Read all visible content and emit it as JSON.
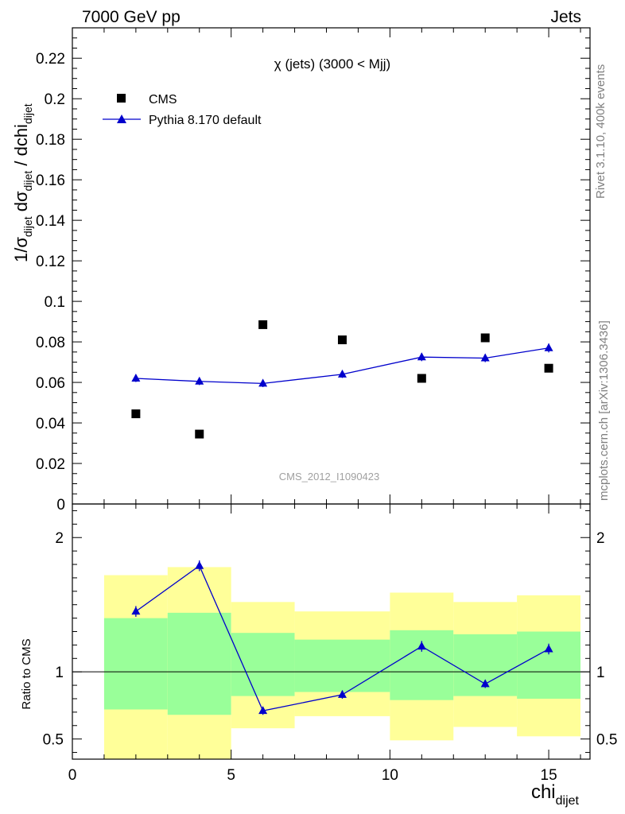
{
  "header": {
    "left": "7000 GeV pp",
    "right": "Jets"
  },
  "side_labels": {
    "rivet": "Rivet 3.1.10,  400k events",
    "mcplots": "mcplots.cern.ch [arXiv:1306.3436]"
  },
  "chart_data": {
    "type": "scatter",
    "title": "χ (jets) (3000 < Mjj)",
    "analysis_id": "CMS_2012_I1090423",
    "xlabel": "chi",
    "xlabel_sub": "dijet",
    "ylabel": "1/σ_dijet dσ_dijet / dchi_dijet",
    "xlim": [
      0,
      16.3
    ],
    "ylim": [
      0,
      0.235
    ],
    "x_ticks": [
      0,
      5,
      10,
      15
    ],
    "y_ticks": [
      0,
      0.02,
      0.04,
      0.06,
      0.08,
      0.1,
      0.12,
      0.14,
      0.16,
      0.18,
      0.2,
      0.22
    ],
    "y_tick_labels": [
      "0",
      "0.02",
      "0.04",
      "0.06",
      "0.08",
      "0.1",
      "0.12",
      "0.14",
      "0.16",
      "0.18",
      "0.2",
      "0.22"
    ],
    "legend_position": "top-left",
    "series": [
      {
        "name": "CMS",
        "color": "#000000",
        "marker": "square",
        "x": [
          2,
          4,
          6,
          8.5,
          11,
          13,
          15
        ],
        "y": [
          0.0445,
          0.0345,
          0.0885,
          0.081,
          0.062,
          0.082,
          0.067
        ]
      },
      {
        "name": "Pythia 8.170 default",
        "color": "#0000cc",
        "marker": "triangle",
        "x": [
          2,
          4,
          6,
          8.5,
          11,
          13,
          15
        ],
        "y": [
          0.062,
          0.0605,
          0.0595,
          0.064,
          0.0725,
          0.072,
          0.077
        ],
        "yerr": [
          0.0018,
          0.0018,
          0.0018,
          0.0018,
          0.002,
          0.002,
          0.0022
        ]
      }
    ],
    "ratio": {
      "ylabel": "Ratio to CMS",
      "ylim": [
        0.35,
        2.25
      ],
      "y_ticks": [
        0.5,
        1,
        2
      ],
      "y_tick_labels": [
        "0.5",
        "1",
        "2"
      ],
      "bins": [
        {
          "xlo": 1,
          "xhi": 3,
          "green": [
            0.72,
            1.4
          ],
          "yellow": [
            0.35,
            1.72
          ]
        },
        {
          "xlo": 3,
          "xhi": 5,
          "green": [
            0.68,
            1.44
          ],
          "yellow": [
            0.35,
            1.78
          ]
        },
        {
          "xlo": 5,
          "xhi": 7,
          "green": [
            0.82,
            1.29
          ],
          "yellow": [
            0.58,
            1.52
          ]
        },
        {
          "xlo": 7,
          "xhi": 10,
          "green": [
            0.85,
            1.24
          ],
          "yellow": [
            0.67,
            1.45
          ]
        },
        {
          "xlo": 10,
          "xhi": 12,
          "green": [
            0.79,
            1.31
          ],
          "yellow": [
            0.49,
            1.59
          ]
        },
        {
          "xlo": 12,
          "xhi": 14,
          "green": [
            0.82,
            1.28
          ],
          "yellow": [
            0.59,
            1.52
          ]
        },
        {
          "xlo": 14,
          "xhi": 16,
          "green": [
            0.8,
            1.3
          ],
          "yellow": [
            0.52,
            1.57
          ]
        }
      ],
      "series": {
        "name": "Pythia 8.170 default",
        "x": [
          2,
          4,
          6,
          8.5,
          11,
          13,
          15
        ],
        "y": [
          1.45,
          1.79,
          0.71,
          0.83,
          1.19,
          0.91,
          1.17
        ],
        "yerr": [
          0.04,
          0.04,
          0.03,
          0.03,
          0.04,
          0.03,
          0.04
        ]
      }
    }
  }
}
